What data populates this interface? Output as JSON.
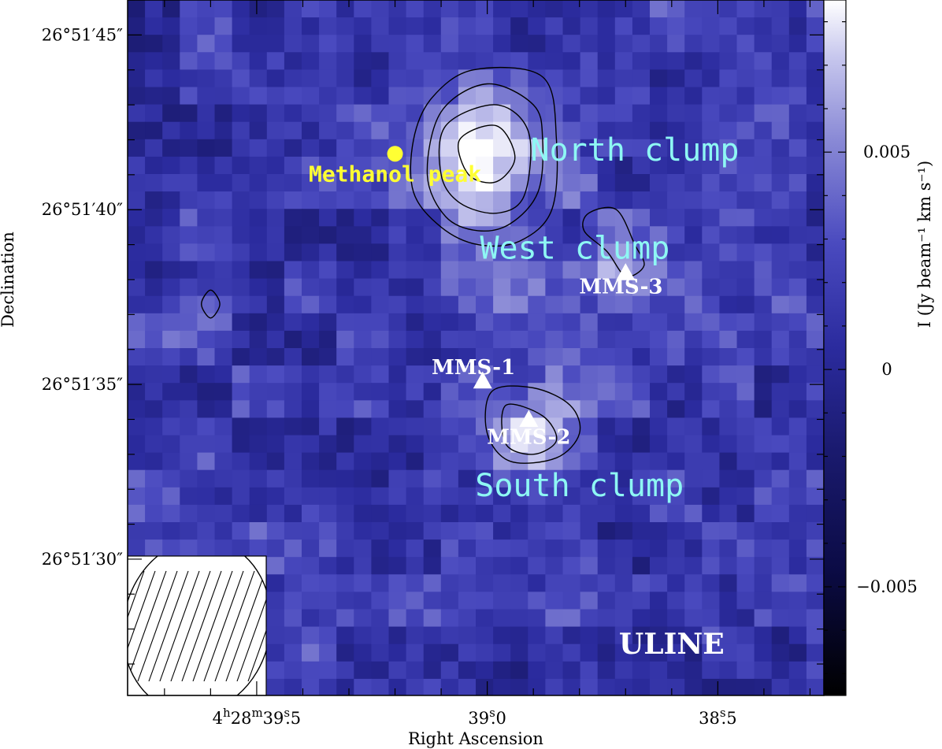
{
  "chart_data": {
    "type": "heatmap",
    "xlabel": "Right Ascension",
    "ylabel": "Declination",
    "colorbar_label": "I (Jy beam⁻¹ km s⁻¹)",
    "colorbar_ticks": [
      {
        "value": 0.005,
        "label": "0.005"
      },
      {
        "value": 0,
        "label": "0"
      },
      {
        "value": -0.005,
        "label": "−0.005"
      }
    ],
    "colorbar_range": [
      -0.0075,
      0.0085
    ],
    "ra_axis": {
      "range_seconds": [
        39.78,
        38.27
      ],
      "ticks": [
        {
          "value": 39.5,
          "label_h": "4",
          "label_m": "28",
          "label_sec": "39",
          "label_frac": "5"
        },
        {
          "value": 39.0,
          "label_sec": "39",
          "label_frac": "0"
        },
        {
          "value": 38.5,
          "label_sec": "38",
          "label_frac": "5"
        }
      ]
    },
    "dec_axis": {
      "range_arcsec": [
        26.1,
        46.0
      ],
      "ticks": [
        {
          "value": 45,
          "label": "26°51′45″"
        },
        {
          "value": 40,
          "label": "26°51′40″"
        },
        {
          "value": 35,
          "label": "26°51′35″"
        },
        {
          "value": 30,
          "label": "26°51′30″"
        }
      ]
    },
    "intensity_sources": [
      {
        "ra": 39.0,
        "dec": 41.5,
        "peak": 0.0085,
        "sigma": 1.2
      },
      {
        "ra": 38.9,
        "dec": 33.8,
        "peak": 0.0055,
        "sigma": 1.0
      },
      {
        "ra": 38.71,
        "dec": 38.9,
        "peak": 0.0035,
        "sigma": 0.9
      },
      {
        "ra": 39.62,
        "dec": 37.2,
        "peak": 0.002,
        "sigma": 0.8
      },
      {
        "ra": 38.95,
        "dec": 37.5,
        "peak": 0.0015,
        "sigma": 1.8
      }
    ],
    "contours": {
      "north": [
        [
          [
            39.06,
            42.0
          ],
          [
            38.98,
            42.4
          ],
          [
            38.94,
            41.5
          ],
          [
            38.98,
            40.8
          ],
          [
            39.04,
            41.0
          ]
        ],
        [
          [
            39.09,
            42.4
          ],
          [
            38.98,
            43.0
          ],
          [
            38.91,
            42.2
          ],
          [
            38.92,
            40.4
          ],
          [
            38.98,
            39.9
          ],
          [
            39.06,
            40.2
          ],
          [
            39.1,
            41.0
          ]
        ],
        [
          [
            39.1,
            42.8
          ],
          [
            39.0,
            43.6
          ],
          [
            38.9,
            43.0
          ],
          [
            38.88,
            42.0
          ],
          [
            38.89,
            40.5
          ],
          [
            38.95,
            39.6
          ],
          [
            39.02,
            39.4
          ],
          [
            39.09,
            39.8
          ],
          [
            39.13,
            41.0
          ]
        ],
        [
          [
            39.12,
            43.2
          ],
          [
            39.03,
            44.0
          ],
          [
            38.88,
            43.8
          ],
          [
            38.85,
            42.0
          ],
          [
            38.86,
            40.0
          ],
          [
            38.93,
            39.1
          ],
          [
            39.02,
            39.0
          ],
          [
            39.1,
            39.5
          ],
          [
            39.16,
            40.5
          ],
          [
            39.16,
            42.0
          ]
        ]
      ],
      "south": [
        [
          [
            38.96,
            34.4
          ],
          [
            38.88,
            34.1
          ],
          [
            38.85,
            33.4
          ],
          [
            38.9,
            33.0
          ],
          [
            38.96,
            33.3
          ]
        ],
        [
          [
            38.99,
            34.8
          ],
          [
            38.9,
            34.9
          ],
          [
            38.82,
            34.4
          ],
          [
            38.8,
            33.6
          ],
          [
            38.85,
            32.9
          ],
          [
            38.95,
            32.8
          ],
          [
            39.0,
            33.6
          ]
        ]
      ],
      "west": [
        [
          [
            38.78,
            39.9
          ],
          [
            38.72,
            40.0
          ],
          [
            38.68,
            39.0
          ],
          [
            38.66,
            38.4
          ],
          [
            38.7,
            38.1
          ],
          [
            38.74,
            38.8
          ],
          [
            38.79,
            39.4
          ]
        ]
      ],
      "small": [
        [
          [
            39.6,
            37.7
          ],
          [
            39.58,
            37.3
          ],
          [
            39.6,
            36.9
          ],
          [
            39.62,
            37.3
          ]
        ]
      ]
    },
    "annotations": [
      {
        "text": "North clump",
        "ra": 38.68,
        "dec": 41.4,
        "color": "#8ef7f4"
      },
      {
        "text": "West clump",
        "ra": 38.81,
        "dec": 38.6,
        "color": "#8ef7f4"
      },
      {
        "text": "South clump",
        "ra": 38.8,
        "dec": 31.8,
        "color": "#8ef7f4"
      },
      {
        "text": "Methanol peak",
        "ra": 39.2,
        "dec": 40.8,
        "color": "#ffff33"
      },
      {
        "text": "MMS-1",
        "ra": 39.03,
        "dec": 35.3,
        "color": "#ffffff"
      },
      {
        "text": "MMS-2",
        "ra": 38.91,
        "dec": 33.3,
        "color": "#ffffff"
      },
      {
        "text": "MMS-3",
        "ra": 38.71,
        "dec": 37.6,
        "color": "#ffffff"
      },
      {
        "text": "ULINE",
        "ra": 38.6,
        "dec": 27.3,
        "color": "#ffffff"
      }
    ],
    "markers": [
      {
        "name": "methanol-peak",
        "shape": "circle",
        "ra": 39.2,
        "dec": 41.6,
        "color": "#ffff33"
      },
      {
        "name": "mms-1",
        "shape": "triangle",
        "ra": 39.01,
        "dec": 35.1,
        "color": "#ffffff"
      },
      {
        "name": "mms-2",
        "shape": "triangle",
        "ra": 38.91,
        "dec": 34.0,
        "color": "#ffffff"
      },
      {
        "name": "mms-3",
        "shape": "triangle",
        "ra": 38.7,
        "dec": 38.2,
        "color": "#ffffff"
      }
    ],
    "beam": {
      "major_arcsec": 2.5,
      "minor_arcsec": 2.1,
      "hatched": true
    },
    "colormap": [
      "#000000",
      "#0b0b45",
      "#1a1a6e",
      "#2b2b9e",
      "#4a4abf",
      "#8a8ad6",
      "#c8c8ee",
      "#ffffff"
    ]
  }
}
